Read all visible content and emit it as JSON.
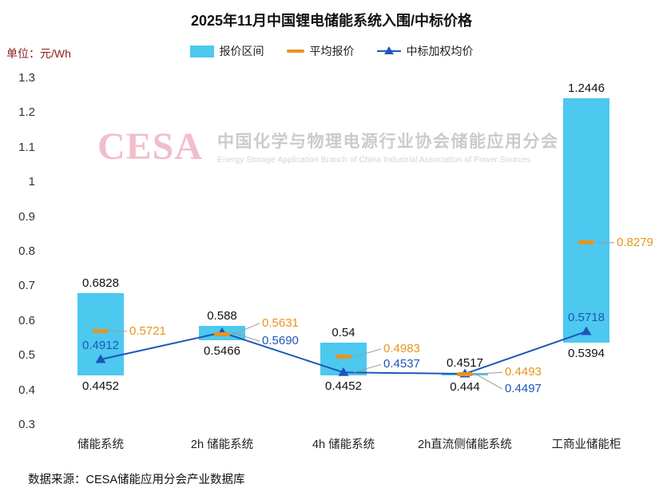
{
  "title": "2025年11月中国锂电储能系统入围/中标价格",
  "unit_label": "单位：元/Wh",
  "legend": [
    {
      "label": "报价区间"
    },
    {
      "label": "平均报价"
    },
    {
      "label": "中标加权均价"
    }
  ],
  "watermark": {
    "logo": "CESA",
    "cn": "中国化学与物理电源行业协会储能应用分会",
    "en": "Energy Storage Application Branch of China Industrial Association of Power Sources"
  },
  "source": "数据来源：CESA储能应用分会产业数据库",
  "colors": {
    "bar": "#4DC8EF",
    "avg": "#E8941F",
    "wavg": "#1F56B8",
    "leader": "#999999"
  },
  "chart_data": {
    "type": "bar",
    "subtype": "floating-range-bar-with-line",
    "title": "2025年11月中国锂电储能系统入围/中标价格",
    "unit": "元/Wh",
    "categories": [
      "储能系统",
      "2h 储能系统",
      "4h 储能系统",
      "2h直流侧储能系统",
      "工商业储能柜"
    ],
    "series": [
      {
        "name": "报价区间",
        "type": "range",
        "min": [
          0.4452,
          0.5466,
          0.4452,
          0.444,
          0.5394
        ],
        "max": [
          0.6828,
          0.588,
          0.54,
          0.4517,
          1.2446
        ],
        "min_labels": [
          "0.4452",
          "0.5466",
          "0.4452",
          "0.444",
          "0.5394"
        ],
        "max_labels": [
          "0.6828",
          "0.588",
          "0.54",
          "0.4517",
          "1.2446"
        ]
      },
      {
        "name": "平均报价",
        "type": "dash",
        "values": [
          0.5721,
          0.5631,
          0.4983,
          0.4493,
          0.8279
        ],
        "labels": [
          "0.5721",
          "0.5631",
          "0.4983",
          "0.4493",
          "0.8279"
        ]
      },
      {
        "name": "中标加权均价",
        "type": "line",
        "values": [
          0.4912,
          0.569,
          0.4537,
          0.4497,
          0.5718
        ],
        "labels": [
          "0.4912",
          "0.5690",
          "0.4537",
          "0.4497",
          "0.5718"
        ]
      }
    ],
    "ylim": [
      0.3,
      1.3
    ],
    "yticks": [
      "1.3",
      "1.2",
      "1.1",
      "1",
      "0.9",
      "0.8",
      "0.7",
      "0.6",
      "0.5",
      "0.4",
      "0.3"
    ],
    "legend_position": "top",
    "grid": false
  }
}
